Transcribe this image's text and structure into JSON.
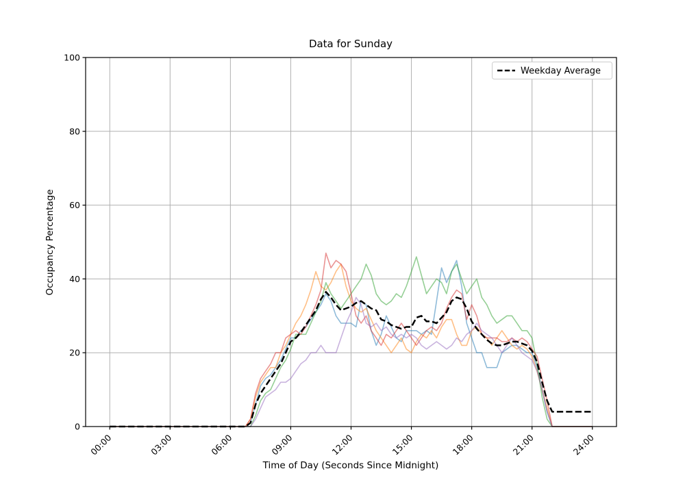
{
  "chart_data": {
    "type": "line",
    "title": "Data for Sunday",
    "xlabel": "Time of Day (Seconds Since Midnight)",
    "ylabel": "Occupancy Percentage",
    "xlim_hours": [
      0,
      24
    ],
    "ylim": [
      0,
      100
    ],
    "grid": true,
    "grid_color": "#b0b0b0",
    "x_tick_hours": [
      0,
      3,
      6,
      9,
      12,
      15,
      18,
      21,
      24
    ],
    "x_tick_labels": [
      "00:00",
      "03:00",
      "06:00",
      "09:00",
      "12:00",
      "15:00",
      "18:00",
      "21:00",
      "24:00"
    ],
    "y_ticks": [
      0,
      20,
      40,
      60,
      80,
      100
    ],
    "x_start_hour": 0,
    "x_step_hours": 0.25,
    "legend": {
      "position": "upper right",
      "entries": [
        {
          "label": "Weekday Average",
          "style": "dashed",
          "color": "#000000"
        }
      ]
    },
    "series": [
      {
        "name": "sunday-series-blue",
        "color": "#1f77b4",
        "alpha": 0.5,
        "dashed": false,
        "width": 1.6,
        "values": [
          0,
          0,
          0,
          0,
          0,
          0,
          0,
          0,
          0,
          0,
          0,
          0,
          0,
          0,
          0,
          0,
          0,
          0,
          0,
          0,
          0,
          0,
          0,
          0,
          0,
          0,
          0,
          0,
          1,
          6,
          11,
          13,
          14,
          16,
          18,
          21,
          24,
          24,
          26,
          27,
          29,
          31,
          33,
          36,
          34,
          30,
          28,
          28,
          28,
          27,
          34,
          33,
          26,
          22,
          25,
          30,
          27,
          24,
          23,
          26,
          26,
          26,
          25,
          26,
          25,
          34,
          43,
          39,
          42,
          45,
          38,
          28,
          24,
          20,
          20,
          16,
          16,
          16,
          20,
          21,
          22,
          22,
          21,
          20,
          20,
          16,
          10,
          4,
          0,
          0,
          0,
          0,
          0,
          0,
          0,
          0,
          0
        ]
      },
      {
        "name": "sunday-series-orange",
        "color": "#ff7f0e",
        "alpha": 0.5,
        "dashed": false,
        "width": 1.6,
        "values": [
          0,
          0,
          0,
          0,
          0,
          0,
          0,
          0,
          0,
          0,
          0,
          0,
          0,
          0,
          0,
          0,
          0,
          0,
          0,
          0,
          0,
          0,
          0,
          0,
          0,
          0,
          0,
          0,
          2,
          8,
          12,
          14,
          16,
          16,
          20,
          22,
          25,
          28,
          30,
          33,
          37,
          42,
          38,
          37,
          39,
          42,
          44,
          38,
          34,
          32,
          31,
          32,
          29,
          26,
          24,
          22,
          20,
          22,
          24,
          21,
          20,
          23,
          25,
          24,
          26,
          24,
          27,
          29,
          29,
          25,
          22,
          22,
          26,
          27,
          25,
          24,
          22,
          24,
          26,
          24,
          22,
          21,
          22,
          21,
          19,
          15,
          10,
          5,
          0,
          0,
          0,
          0,
          0,
          0,
          0,
          0,
          0
        ]
      },
      {
        "name": "sunday-series-green",
        "color": "#2ca02c",
        "alpha": 0.5,
        "dashed": false,
        "width": 1.6,
        "values": [
          0,
          0,
          0,
          0,
          0,
          0,
          0,
          0,
          0,
          0,
          0,
          0,
          0,
          0,
          0,
          0,
          0,
          0,
          0,
          0,
          0,
          0,
          0,
          0,
          0,
          0,
          0,
          0,
          0,
          3,
          7,
          9,
          10,
          13,
          16,
          18,
          21,
          25,
          25,
          25,
          28,
          31,
          34,
          39,
          36,
          34,
          32,
          34,
          36,
          38,
          40,
          44,
          41,
          36,
          34,
          33,
          34,
          36,
          35,
          38,
          42,
          46,
          41,
          36,
          38,
          40,
          39,
          36,
          42,
          44,
          40,
          36,
          38,
          40,
          35,
          33,
          30,
          28,
          29,
          30,
          30,
          28,
          26,
          26,
          24,
          17,
          8,
          2,
          0,
          0,
          0,
          0,
          0,
          0,
          0,
          0,
          0
        ]
      },
      {
        "name": "sunday-series-red",
        "color": "#d62728",
        "alpha": 0.5,
        "dashed": false,
        "width": 1.6,
        "values": [
          0,
          0,
          0,
          0,
          0,
          0,
          0,
          0,
          0,
          0,
          0,
          0,
          0,
          0,
          0,
          0,
          0,
          0,
          0,
          0,
          0,
          0,
          0,
          0,
          0,
          0,
          0,
          0,
          2,
          9,
          13,
          15,
          17,
          20,
          20,
          24,
          25,
          26,
          25,
          27,
          30,
          33,
          37,
          47,
          43,
          45,
          44,
          42,
          36,
          30,
          28,
          30,
          26,
          24,
          22,
          25,
          24,
          26,
          28,
          26,
          24,
          22,
          24,
          26,
          27,
          26,
          28,
          32,
          35,
          37,
          36,
          29,
          33,
          30,
          25,
          24,
          24,
          24,
          23,
          23,
          24,
          23,
          24,
          23,
          21,
          19,
          13,
          7,
          0,
          0,
          0,
          0,
          0,
          0,
          0,
          0,
          0
        ]
      },
      {
        "name": "sunday-series-purple",
        "color": "#9467bd",
        "alpha": 0.5,
        "dashed": false,
        "width": 1.6,
        "values": [
          0,
          0,
          0,
          0,
          0,
          0,
          0,
          0,
          0,
          0,
          0,
          0,
          0,
          0,
          0,
          0,
          0,
          0,
          0,
          0,
          0,
          0,
          0,
          0,
          0,
          0,
          0,
          0,
          0,
          2,
          5,
          8,
          9,
          10,
          12,
          12,
          13,
          15,
          17,
          18,
          20,
          20,
          22,
          20,
          20,
          20,
          24,
          28,
          31,
          35,
          33,
          28,
          27,
          28,
          26,
          27,
          25,
          24,
          25,
          24,
          25,
          24,
          22,
          21,
          22,
          23,
          22,
          21,
          22,
          24,
          23,
          25,
          26,
          28,
          26,
          25,
          24,
          22,
          20,
          22,
          24,
          22,
          20,
          19,
          18,
          15,
          10,
          4,
          0,
          0,
          0,
          0,
          0,
          0,
          0,
          0,
          0
        ]
      },
      {
        "name": "Weekday Average",
        "color": "#000000",
        "alpha": 1,
        "dashed": true,
        "width": 2.5,
        "values": [
          0,
          0,
          0,
          0,
          0,
          0,
          0,
          0,
          0,
          0,
          0,
          0,
          0,
          0,
          0,
          0,
          0,
          0,
          0,
          0,
          0,
          0,
          0,
          0,
          0,
          0,
          0,
          0,
          1,
          6,
          9,
          11,
          13,
          15,
          17,
          20,
          23,
          24,
          25.5,
          27.5,
          29.5,
          31.5,
          34.5,
          36.5,
          35,
          33,
          31.5,
          32,
          32.5,
          33.5,
          34,
          33,
          32,
          31.5,
          29,
          28.5,
          27.5,
          27,
          26.5,
          27,
          27,
          29.5,
          30,
          28.5,
          28.5,
          28,
          29.5,
          31,
          34,
          35,
          34.5,
          32,
          28.5,
          26.5,
          25,
          23.5,
          22.5,
          22,
          22,
          22.5,
          23,
          23,
          22.5,
          22,
          20.5,
          17.5,
          12,
          7,
          4,
          4,
          4,
          4,
          4,
          4,
          4,
          4,
          4
        ]
      }
    ]
  }
}
